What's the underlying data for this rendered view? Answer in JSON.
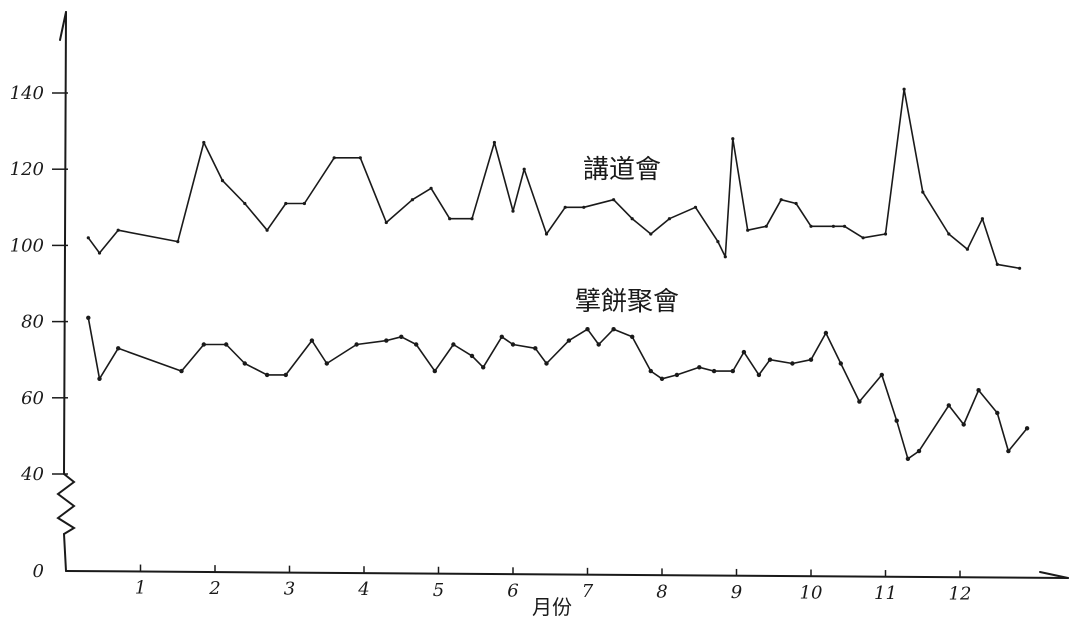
{
  "chart_data": {
    "type": "line",
    "xlabel": "月份",
    "ylabel": "",
    "grid": false,
    "legend": "none",
    "xlim": [
      0,
      12.6
    ],
    "ylim": [
      0,
      150
    ],
    "axis_break": "40",
    "x_ticks": [
      "1",
      "2",
      "3",
      "4",
      "5",
      "6",
      "7",
      "8",
      "9",
      "10",
      "11",
      "12"
    ],
    "y_ticks": [
      "0",
      "40",
      "60",
      "80",
      "100",
      "120",
      "140"
    ],
    "series": [
      {
        "name": "講道會",
        "points": [
          [
            0.3,
            102
          ],
          [
            0.45,
            98
          ],
          [
            0.7,
            104
          ],
          [
            1.5,
            101
          ],
          [
            1.85,
            127
          ],
          [
            2.1,
            117
          ],
          [
            2.4,
            111
          ],
          [
            2.7,
            104
          ],
          [
            2.95,
            111
          ],
          [
            3.2,
            111
          ],
          [
            3.6,
            123
          ],
          [
            3.95,
            123
          ],
          [
            4.3,
            106
          ],
          [
            4.65,
            112
          ],
          [
            4.9,
            115
          ],
          [
            5.15,
            107
          ],
          [
            5.45,
            107
          ],
          [
            5.75,
            127
          ],
          [
            6.0,
            109
          ],
          [
            6.15,
            120
          ],
          [
            6.45,
            103
          ],
          [
            6.7,
            110
          ],
          [
            6.95,
            110
          ],
          [
            7.35,
            112
          ],
          [
            7.6,
            107
          ],
          [
            7.85,
            103
          ],
          [
            8.1,
            107
          ],
          [
            8.45,
            110
          ],
          [
            8.75,
            101
          ],
          [
            8.85,
            97
          ],
          [
            8.95,
            128
          ],
          [
            9.15,
            104
          ],
          [
            9.4,
            105
          ],
          [
            9.6,
            112
          ],
          [
            9.8,
            111
          ],
          [
            10.0,
            105
          ],
          [
            10.3,
            105
          ],
          [
            10.45,
            105
          ],
          [
            10.7,
            102
          ],
          [
            11.0,
            103
          ],
          [
            11.25,
            141
          ],
          [
            11.5,
            114
          ],
          [
            11.85,
            103
          ],
          [
            12.1,
            99
          ],
          [
            12.3,
            107
          ],
          [
            12.5,
            95
          ],
          [
            12.8,
            94
          ]
        ]
      },
      {
        "name": "擘餅聚會",
        "points": [
          [
            0.3,
            81
          ],
          [
            0.45,
            65
          ],
          [
            0.7,
            73
          ],
          [
            1.55,
            67
          ],
          [
            1.85,
            74
          ],
          [
            2.15,
            74
          ],
          [
            2.4,
            69
          ],
          [
            2.7,
            66
          ],
          [
            2.95,
            66
          ],
          [
            3.3,
            75
          ],
          [
            3.5,
            69
          ],
          [
            3.9,
            74
          ],
          [
            4.3,
            75
          ],
          [
            4.5,
            76
          ],
          [
            4.7,
            74
          ],
          [
            4.95,
            67
          ],
          [
            5.2,
            74
          ],
          [
            5.45,
            71
          ],
          [
            5.6,
            68
          ],
          [
            5.85,
            76
          ],
          [
            6.0,
            74
          ],
          [
            6.3,
            73
          ],
          [
            6.45,
            69
          ],
          [
            6.75,
            75
          ],
          [
            7.0,
            78
          ],
          [
            7.15,
            74
          ],
          [
            7.35,
            78
          ],
          [
            7.6,
            76
          ],
          [
            7.85,
            67
          ],
          [
            8.0,
            65
          ],
          [
            8.2,
            66
          ],
          [
            8.5,
            68
          ],
          [
            8.7,
            67
          ],
          [
            8.95,
            67
          ],
          [
            9.1,
            72
          ],
          [
            9.3,
            66
          ],
          [
            9.45,
            70
          ],
          [
            9.75,
            69
          ],
          [
            10.0,
            70
          ],
          [
            10.2,
            77
          ],
          [
            10.4,
            69
          ],
          [
            10.65,
            59
          ],
          [
            10.95,
            66
          ],
          [
            11.15,
            54
          ],
          [
            11.3,
            44
          ],
          [
            11.45,
            46
          ],
          [
            11.85,
            58
          ],
          [
            12.05,
            53
          ],
          [
            12.25,
            62
          ],
          [
            12.5,
            56
          ],
          [
            12.65,
            46
          ],
          [
            12.9,
            52
          ]
        ]
      }
    ]
  }
}
